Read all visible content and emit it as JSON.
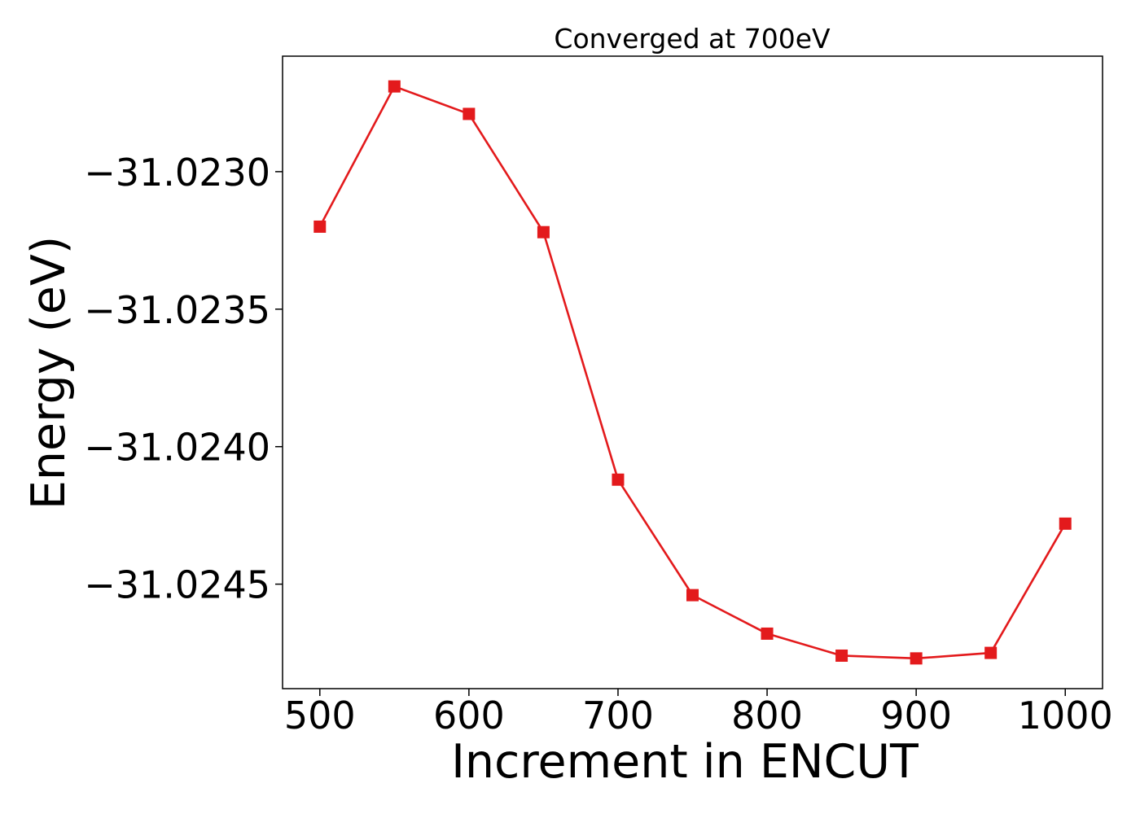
{
  "chart_data": {
    "type": "line",
    "title": "Converged at 700eV",
    "xlabel": "Increment in ENCUT",
    "ylabel": "Energy (eV)",
    "xlim": [
      475,
      1025
    ],
    "ylim": [
      -31.02488,
      -31.02258
    ],
    "grid": false,
    "legend": "none",
    "x_ticks": [
      500,
      600,
      700,
      800,
      900,
      1000
    ],
    "x_tick_labels": [
      "500",
      "600",
      "700",
      "800",
      "900",
      "1000"
    ],
    "y_ticks": [
      -31.023,
      -31.0235,
      -31.024,
      -31.0245
    ],
    "y_tick_labels": [
      "−31.0230",
      "−31.0235",
      "−31.0240",
      "−31.0245"
    ],
    "series": [
      {
        "color": "#e31a1c",
        "marker": "square",
        "x": [
          500,
          550,
          600,
          650,
          700,
          750,
          800,
          850,
          900,
          950,
          1000
        ],
        "y": [
          -31.0232,
          -31.02269,
          -31.02279,
          -31.02322,
          -31.02412,
          -31.02454,
          -31.02468,
          -31.02476,
          -31.02477,
          -31.02475,
          -31.02428
        ]
      }
    ]
  }
}
